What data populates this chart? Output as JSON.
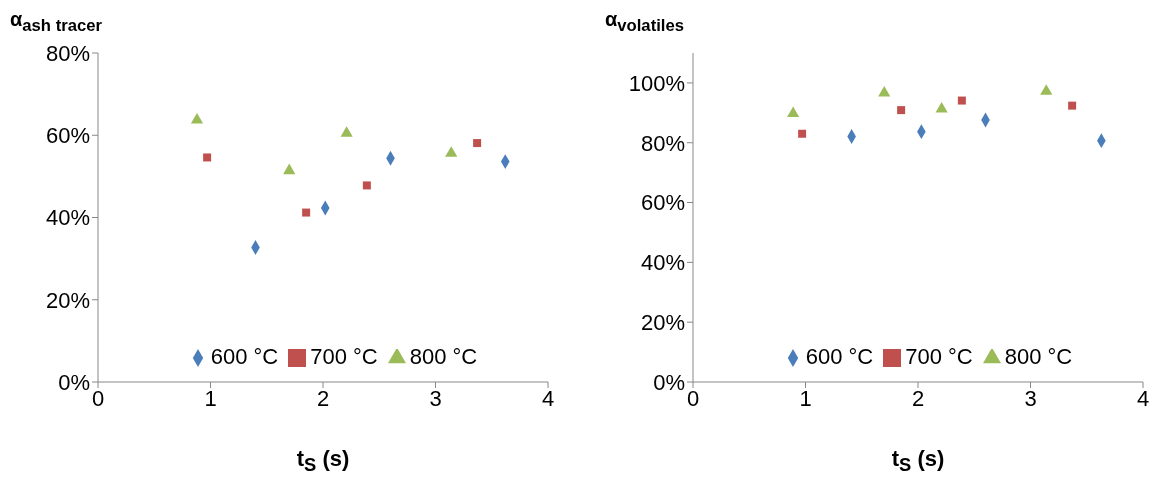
{
  "chart_data": [
    {
      "type": "scatter",
      "ylabel": "α$_{ash tracer}$",
      "xlabel": "t$_{S}$ (s)",
      "xlim": [
        0,
        4
      ],
      "xticks": [
        0,
        1,
        2,
        3,
        4
      ],
      "ylim": [
        0,
        80
      ],
      "yticks": [
        {
          "value": 0,
          "label": "0%"
        },
        {
          "value": 20,
          "label": "20%"
        },
        {
          "value": 40,
          "label": "40%"
        },
        {
          "value": 60,
          "label": "60%"
        },
        {
          "value": 80,
          "label": "80%"
        }
      ],
      "legend": "bottom",
      "series": [
        {
          "name": "600 °C",
          "color": "#4a7ebb",
          "marker": "diamond",
          "x": [
            1.4,
            2.02,
            2.6,
            3.62
          ],
          "values": [
            32.7,
            42.3,
            54.4,
            53.6
          ]
        },
        {
          "name": "700 °C",
          "color": "#c0504d",
          "marker": "square",
          "x": [
            0.97,
            1.85,
            2.39,
            3.37
          ],
          "values": [
            54.6,
            41.2,
            47.8,
            58.1
          ]
        },
        {
          "name": "800 °C",
          "color": "#9bbb59",
          "marker": "triangle",
          "x": [
            0.88,
            1.7,
            2.21,
            3.14
          ],
          "values": [
            63.7,
            51.4,
            60.5,
            55.6
          ]
        }
      ]
    },
    {
      "type": "scatter",
      "ylabel": "α$_{volatiles}$",
      "xlabel": "t$_{S}$ (s)",
      "xlim": [
        0,
        4
      ],
      "xticks": [
        0,
        1,
        2,
        3,
        4
      ],
      "ylim": [
        0,
        110
      ],
      "yticks": [
        {
          "value": 0,
          "label": "0%"
        },
        {
          "value": 20,
          "label": "20%"
        },
        {
          "value": 40,
          "label": "40%"
        },
        {
          "value": 60,
          "label": "60%"
        },
        {
          "value": 80,
          "label": "80%"
        },
        {
          "value": 100,
          "label": "100%"
        }
      ],
      "legend": "bottom",
      "series": [
        {
          "name": "600 °C",
          "color": "#4a7ebb",
          "marker": "diamond",
          "x": [
            1.41,
            2.03,
            2.6,
            3.63
          ],
          "values": [
            82.1,
            83.7,
            87.6,
            80.7
          ]
        },
        {
          "name": "700 °C",
          "color": "#c0504d",
          "marker": "square",
          "x": [
            0.97,
            1.85,
            2.39,
            3.37
          ],
          "values": [
            83.0,
            90.9,
            94.1,
            92.4
          ]
        },
        {
          "name": "800 °C",
          "color": "#9bbb59",
          "marker": "triangle",
          "x": [
            0.89,
            1.7,
            2.21,
            3.14
          ],
          "values": [
            89.8,
            96.6,
            91.3,
            97.2
          ]
        }
      ]
    }
  ]
}
